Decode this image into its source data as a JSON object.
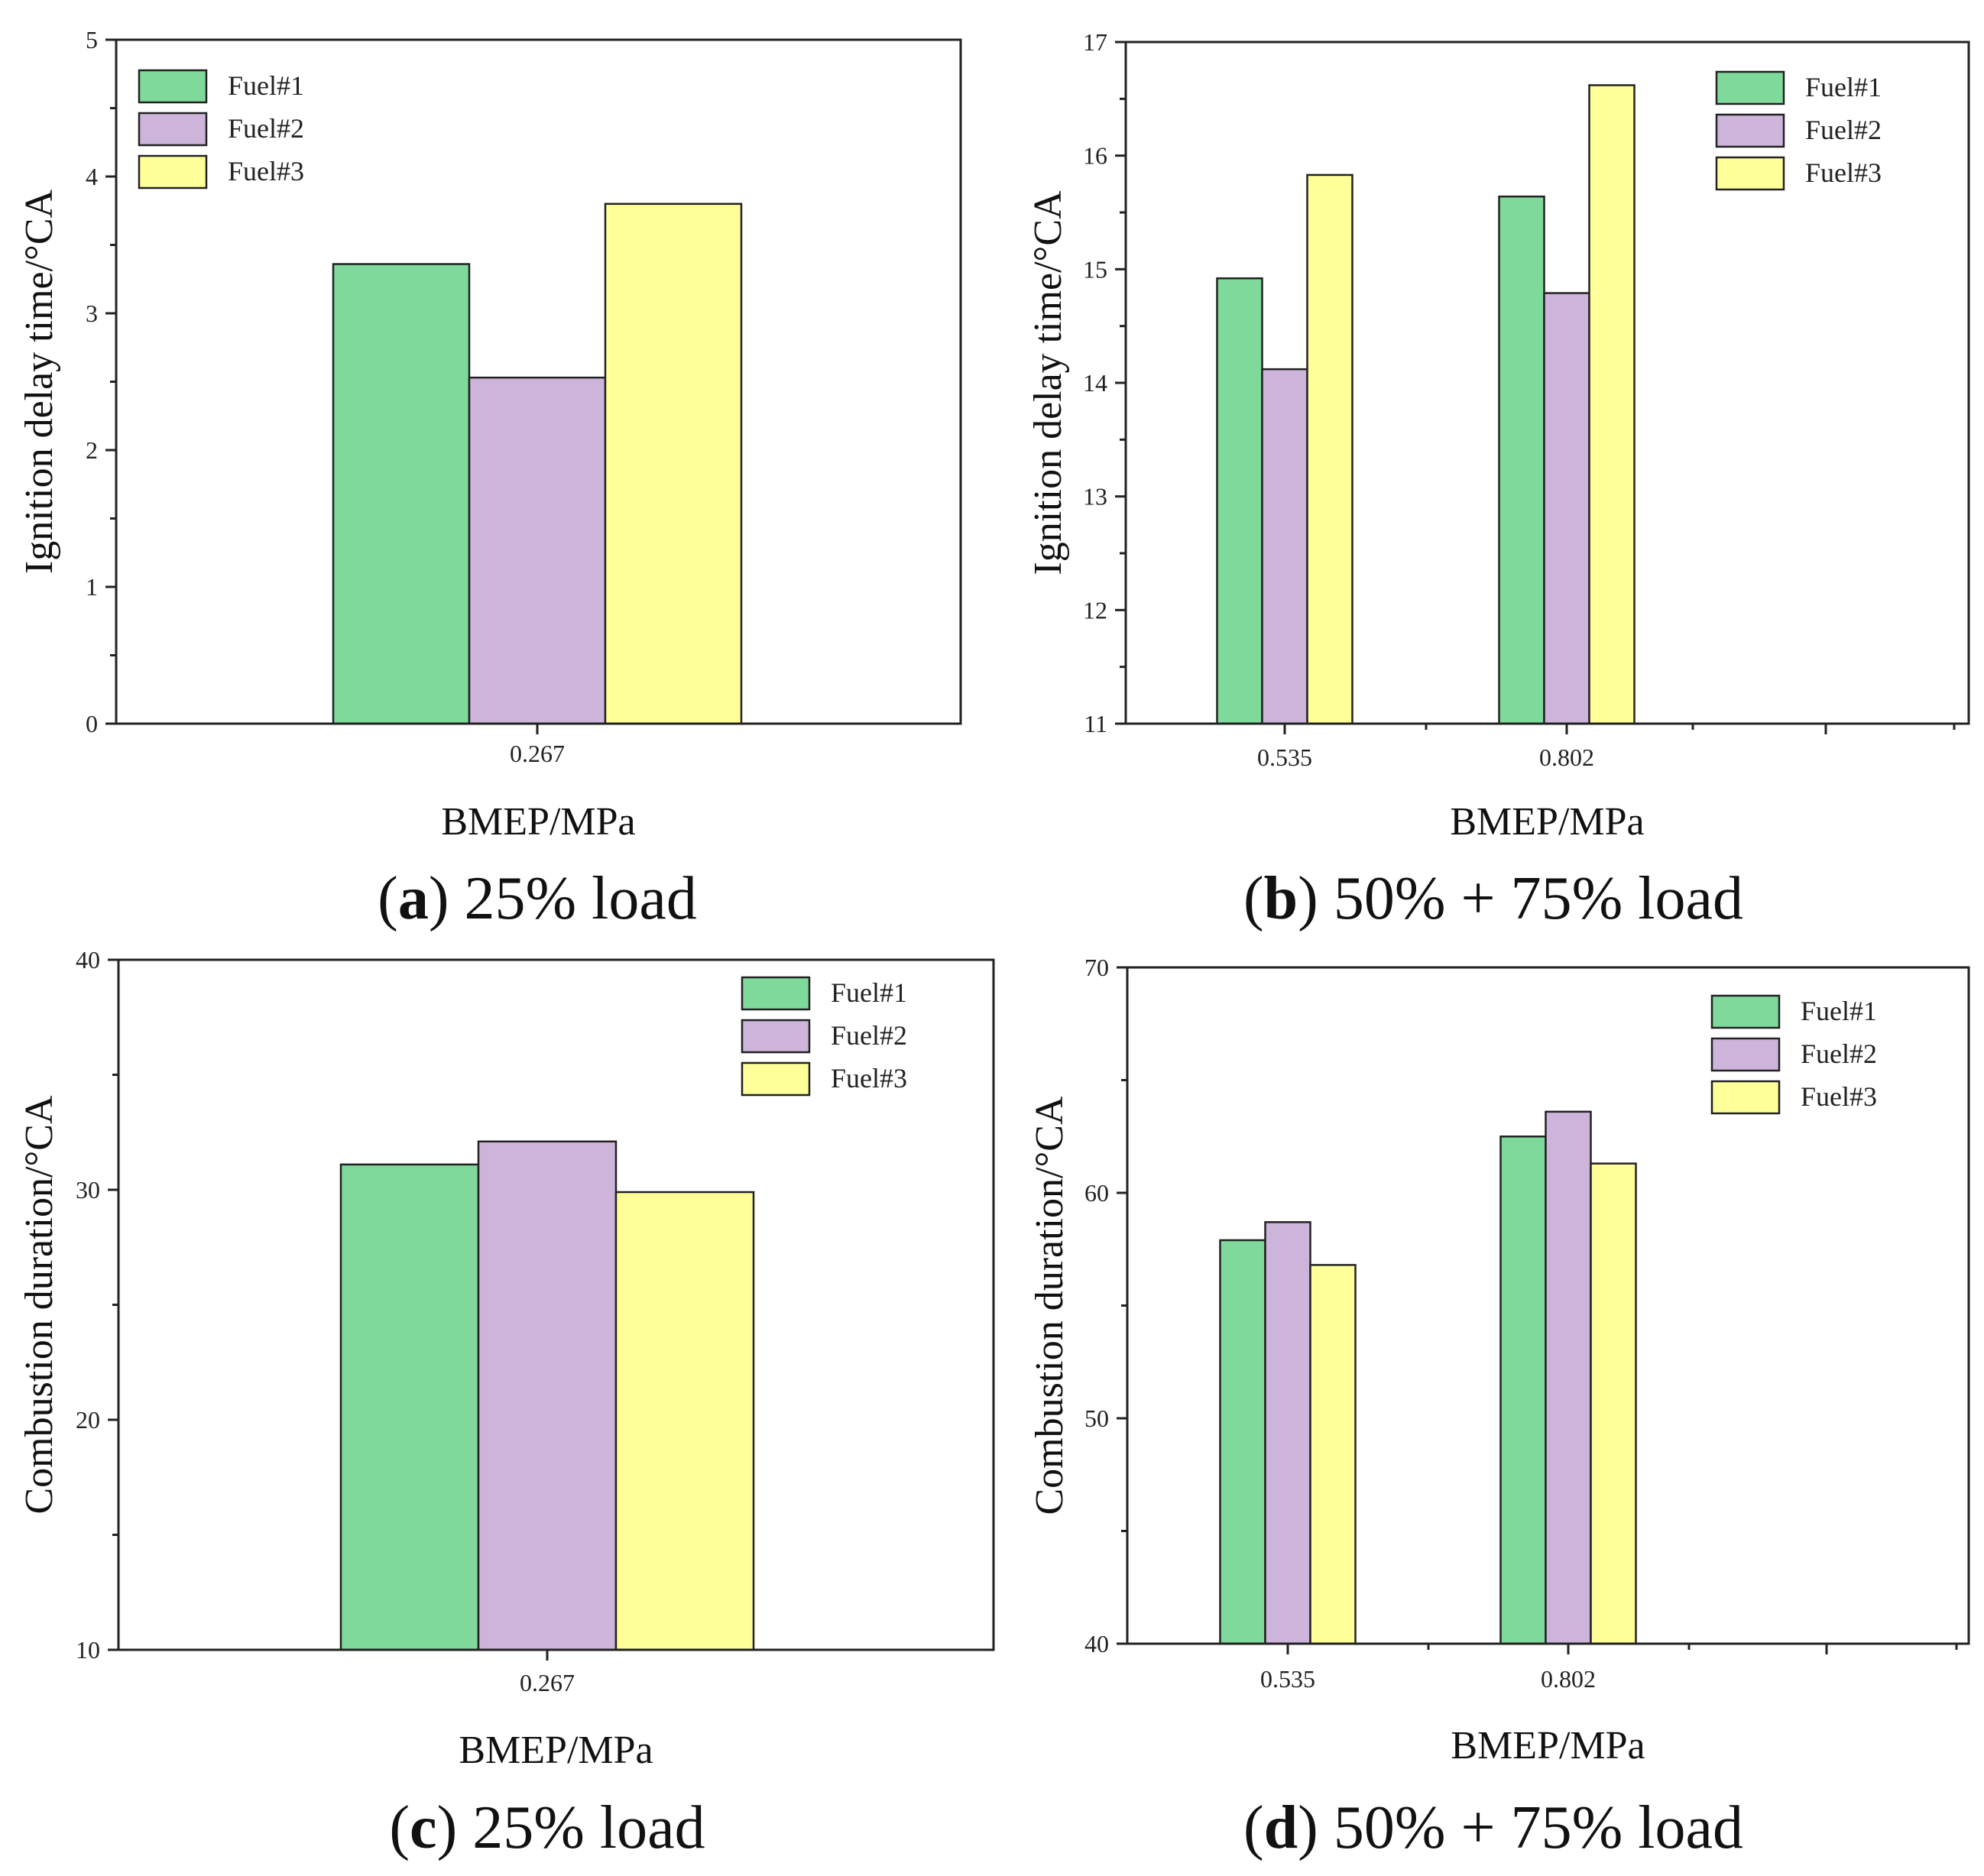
{
  "colors": {
    "fuel1": "#7fd99b",
    "fuel2": "#cdb4da",
    "fuel3": "#ffff9a",
    "stroke": "#222222"
  },
  "chart_data": [
    {
      "type": "bar",
      "id": "a",
      "categories": [
        "0.267"
      ],
      "series": [
        {
          "name": "Fuel#1",
          "values": [
            3.36
          ]
        },
        {
          "name": "Fuel#2",
          "values": [
            2.53
          ]
        },
        {
          "name": "Fuel#3",
          "values": [
            3.8
          ]
        }
      ],
      "xlabel": "BMEP/MPa",
      "ylabel": "Ignition delay time/°CA",
      "ylim": [
        0,
        5
      ],
      "yticks": [
        "0",
        "1",
        "2",
        "3",
        "4",
        "5"
      ],
      "legend": "top-left",
      "caption_letter": "a",
      "caption_text": " 25% load"
    },
    {
      "type": "bar",
      "id": "b",
      "categories": [
        "0.535",
        "0.802"
      ],
      "series": [
        {
          "name": "Fuel#1",
          "values": [
            14.92,
            15.64
          ]
        },
        {
          "name": "Fuel#2",
          "values": [
            14.12,
            14.79
          ]
        },
        {
          "name": "Fuel#3",
          "values": [
            15.83,
            16.62
          ]
        }
      ],
      "xlabel": "BMEP/MPa",
      "ylabel": "Ignition delay time/°CA",
      "ylim": [
        11,
        17
      ],
      "yticks": [
        "11",
        "12",
        "13",
        "14",
        "15",
        "16",
        "17"
      ],
      "legend": "top-right",
      "caption_letter": "b",
      "caption_text": " 50% + 75% load"
    },
    {
      "type": "bar",
      "id": "c",
      "categories": [
        "0.267"
      ],
      "series": [
        {
          "name": "Fuel#1",
          "values": [
            31.1
          ]
        },
        {
          "name": "Fuel#2",
          "values": [
            32.1
          ]
        },
        {
          "name": "Fuel#3",
          "values": [
            29.9
          ]
        }
      ],
      "xlabel": "BMEP/MPa",
      "ylabel": "Combustion duration/°CA",
      "ylim": [
        10,
        40
      ],
      "yticks": [
        "10",
        "20",
        "30",
        "40"
      ],
      "legend": "top-right",
      "caption_letter": "c",
      "caption_text": " 25% load"
    },
    {
      "type": "bar",
      "id": "d",
      "categories": [
        "0.535",
        "0.802"
      ],
      "series": [
        {
          "name": "Fuel#1",
          "values": [
            57.9,
            62.5
          ]
        },
        {
          "name": "Fuel#2",
          "values": [
            58.7,
            63.6
          ]
        },
        {
          "name": "Fuel#3",
          "values": [
            56.8,
            61.3
          ]
        }
      ],
      "xlabel": "BMEP/MPa",
      "ylabel": "Combustion duration/°CA",
      "ylim": [
        40,
        70
      ],
      "yticks": [
        "40",
        "50",
        "60",
        "70"
      ],
      "legend": "top-right",
      "caption_letter": "d",
      "caption_text": " 50% + 75% load"
    }
  ]
}
